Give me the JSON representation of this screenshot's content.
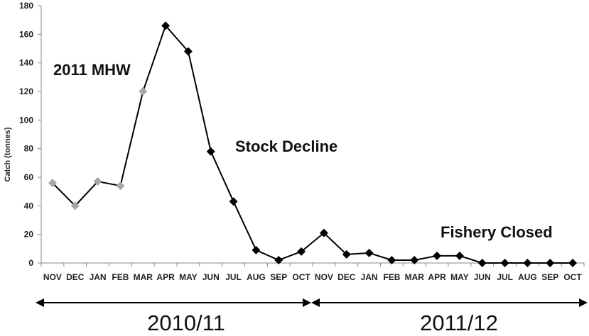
{
  "chart_data": {
    "type": "line",
    "ylabel": "Catch (tonnes)",
    "ylim": [
      0,
      180
    ],
    "yticks": [
      0,
      20,
      40,
      60,
      80,
      100,
      120,
      140,
      160,
      180
    ],
    "categories": [
      "NOV",
      "DEC",
      "JAN",
      "FEB",
      "MAR",
      "APR",
      "MAY",
      "JUN",
      "JUL",
      "AUG",
      "SEP",
      "OCT",
      "NOV",
      "DEC",
      "JAN",
      "FEB",
      "MAR",
      "APR",
      "MAY",
      "JUN",
      "JUL",
      "AUG",
      "SEP",
      "OCT"
    ],
    "values": [
      56,
      40,
      57,
      54,
      120,
      166,
      148,
      78,
      43,
      9,
      2,
      8,
      21,
      6,
      7,
      2,
      2,
      5,
      5,
      0,
      0,
      0,
      0,
      0
    ],
    "marker_colors": [
      "#a6a6a6",
      "#a6a6a6",
      "#a6a6a6",
      "#a6a6a6",
      "#a6a6a6",
      "#000000",
      "#000000",
      "#000000",
      "#000000",
      "#000000",
      "#000000",
      "#000000",
      "#000000",
      "#000000",
      "#000000",
      "#000000",
      "#000000",
      "#000000",
      "#000000",
      "#000000",
      "#000000",
      "#000000",
      "#000000",
      "#000000"
    ],
    "line_color": "#000000",
    "grid": false,
    "annotations": [
      {
        "text": "2011 MHW"
      },
      {
        "text": "Stock Decline"
      },
      {
        "text": "Fishery Closed"
      }
    ],
    "periods": [
      {
        "label": "2010/11"
      },
      {
        "label": "2011/12"
      }
    ]
  }
}
